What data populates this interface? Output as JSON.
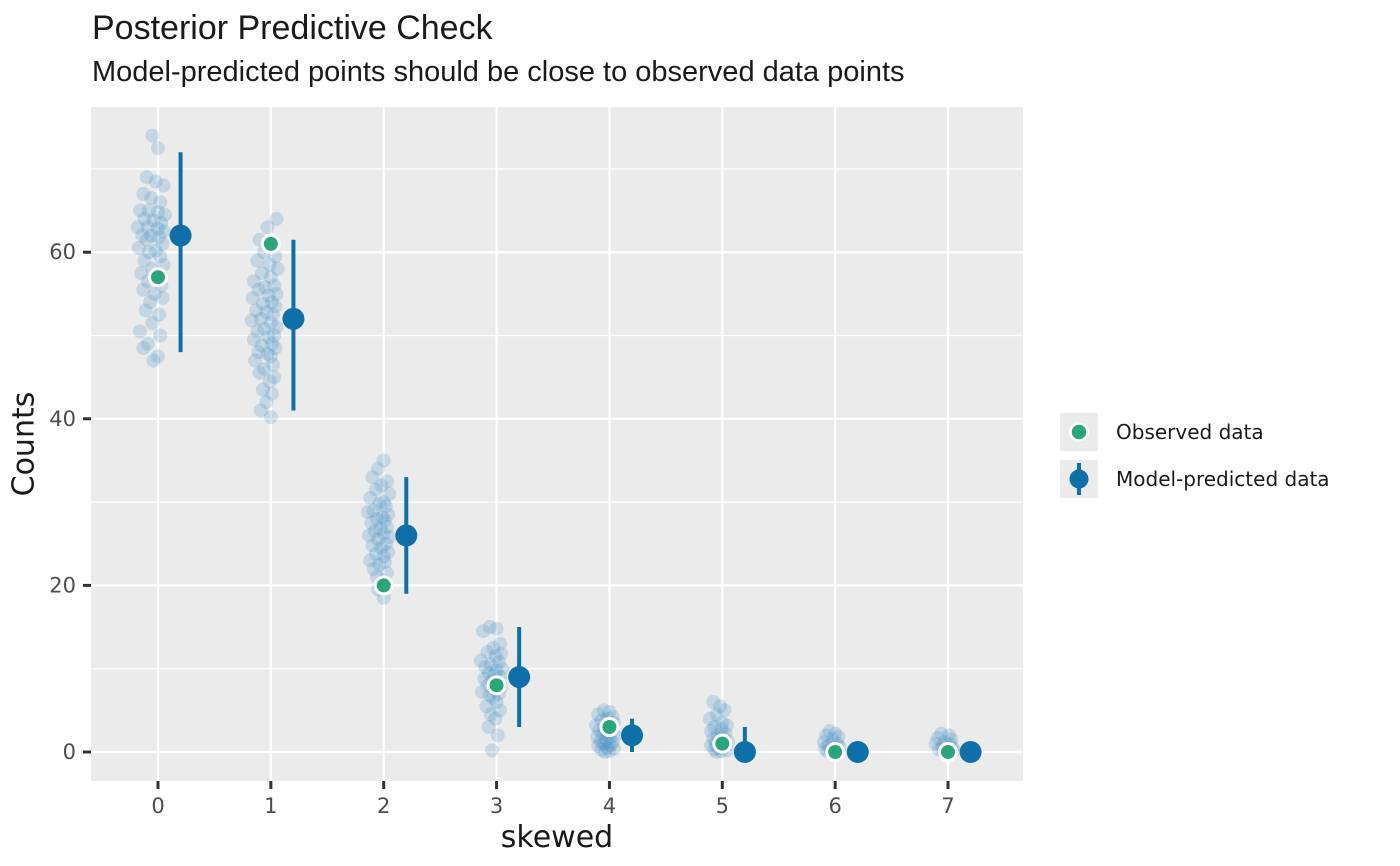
{
  "title": "Posterior Predictive Check",
  "subtitle": "Model-predicted points should be close to observed data points",
  "colors": {
    "observed": "#2CA57C",
    "predicted": "#0F6FA9",
    "draws_fill": "#3E8FC4",
    "draws_opacity": 0.22,
    "panel_bg": "#EBEBEB",
    "grid": "#FFFFFF",
    "axis_text": "#4D4D4D",
    "tick_mark": "#333333"
  },
  "legend": {
    "items": [
      {
        "label": "Observed data",
        "type": "point"
      },
      {
        "label": "Model-predicted data",
        "type": "pointrange"
      }
    ]
  },
  "chart_data": {
    "type": "scatter",
    "subtype": "ppc-pointrange-with-jittered-draws",
    "title": "Posterior Predictive Check",
    "subtitle": "Model-predicted points should be close to observed data points",
    "xlabel": "skewed",
    "ylabel": "Counts",
    "categories": [
      0,
      1,
      2,
      3,
      4,
      5,
      6,
      7
    ],
    "x_tick_labels": [
      "0",
      "1",
      "2",
      "3",
      "4",
      "5",
      "6",
      "7"
    ],
    "y_ticks": [
      0,
      20,
      40,
      60
    ],
    "y_minor_ticks": [
      10,
      30,
      50,
      70
    ],
    "xlim": [
      -0.59,
      7.66
    ],
    "ylim": [
      -3.5,
      77.4
    ],
    "grid": "major-white-on-gray, minor horizontal only",
    "legend_position": "right",
    "series": [
      {
        "name": "Observed data",
        "geom": "point",
        "values": [
          57,
          61,
          20,
          8,
          3,
          1,
          0,
          0
        ]
      },
      {
        "name": "Model-predicted data",
        "geom": "pointrange",
        "x_offset": 0.2,
        "mean": [
          62,
          52,
          26,
          9,
          2,
          0,
          0,
          0
        ],
        "lower": [
          48,
          41,
          19,
          3,
          0,
          0,
          0,
          0
        ],
        "upper": [
          72,
          61.5,
          33,
          15,
          4,
          3,
          1,
          1
        ]
      }
    ],
    "draws": [
      [
        [
          -0.05,
          74
        ],
        [
          0.0,
          72.5
        ],
        [
          -0.1,
          69
        ],
        [
          -0.02,
          68.5
        ],
        [
          0.05,
          68
        ],
        [
          -0.13,
          67
        ],
        [
          -0.06,
          66.5
        ],
        [
          0.02,
          66
        ],
        [
          -0.16,
          65
        ],
        [
          -0.08,
          65
        ],
        [
          0.0,
          64.8
        ],
        [
          0.06,
          64.5
        ],
        [
          -0.12,
          64
        ],
        [
          -0.04,
          63.8
        ],
        [
          0.03,
          63.5
        ],
        [
          -0.18,
          63
        ],
        [
          -0.09,
          63
        ],
        [
          0.0,
          62.8
        ],
        [
          0.05,
          62.5
        ],
        [
          -0.14,
          62
        ],
        [
          -0.06,
          62
        ],
        [
          0.01,
          61.8
        ],
        [
          -0.1,
          61.5
        ],
        [
          0.04,
          61
        ],
        [
          -0.17,
          60.5
        ],
        [
          -0.02,
          60.2
        ],
        [
          -0.08,
          60
        ],
        [
          0.02,
          59.5
        ],
        [
          -0.12,
          59
        ],
        [
          0.05,
          58.5
        ],
        [
          -0.05,
          58
        ],
        [
          -0.15,
          57.5
        ],
        [
          0.0,
          57
        ],
        [
          -0.09,
          56.5
        ],
        [
          0.03,
          56
        ],
        [
          -0.13,
          55.5
        ],
        [
          -0.03,
          55
        ],
        [
          0.04,
          54.5
        ],
        [
          -0.07,
          54
        ],
        [
          -0.11,
          53
        ],
        [
          0.01,
          52.5
        ],
        [
          -0.05,
          51.5
        ],
        [
          -0.16,
          50.5
        ],
        [
          0.02,
          50
        ],
        [
          -0.09,
          49
        ],
        [
          -0.13,
          48.5
        ],
        [
          0.0,
          47.5
        ],
        [
          -0.04,
          47
        ]
      ],
      [
        [
          0.05,
          64
        ],
        [
          -0.03,
          63
        ],
        [
          -0.1,
          61.5
        ],
        [
          0.02,
          61
        ],
        [
          -0.06,
          60
        ],
        [
          0.04,
          59.5
        ],
        [
          -0.12,
          59
        ],
        [
          -0.01,
          58.5
        ],
        [
          0.06,
          58
        ],
        [
          -0.08,
          57.5
        ],
        [
          0.0,
          57
        ],
        [
          -0.15,
          56.5
        ],
        [
          0.03,
          56
        ],
        [
          -0.05,
          55.8
        ],
        [
          -0.11,
          55.5
        ],
        [
          0.05,
          55
        ],
        [
          -0.02,
          54.8
        ],
        [
          -0.16,
          54.5
        ],
        [
          0.01,
          54
        ],
        [
          -0.07,
          53.8
        ],
        [
          0.04,
          53.5
        ],
        [
          -0.13,
          53
        ],
        [
          -0.04,
          52.8
        ],
        [
          0.02,
          52.5
        ],
        [
          -0.09,
          52
        ],
        [
          -0.17,
          51.8
        ],
        [
          0.0,
          51.5
        ],
        [
          0.05,
          51
        ],
        [
          -0.06,
          50.8
        ],
        [
          -0.12,
          50.5
        ],
        [
          0.03,
          50
        ],
        [
          -0.02,
          49.8
        ],
        [
          -0.15,
          49.5
        ],
        [
          0.01,
          49
        ],
        [
          -0.08,
          48.8
        ],
        [
          0.04,
          48.5
        ],
        [
          -0.11,
          48
        ],
        [
          -0.03,
          47.8
        ],
        [
          0.0,
          47.5
        ],
        [
          -0.14,
          47
        ],
        [
          0.02,
          46.5
        ],
        [
          -0.06,
          46
        ],
        [
          -0.1,
          45.5
        ],
        [
          0.03,
          45
        ],
        [
          -0.01,
          44.5
        ],
        [
          -0.07,
          43.5
        ],
        [
          0.01,
          43
        ],
        [
          -0.04,
          42
        ],
        [
          -0.09,
          41
        ],
        [
          0.0,
          40.2
        ]
      ],
      [
        [
          0.0,
          35
        ],
        [
          -0.05,
          34
        ],
        [
          -0.1,
          33
        ],
        [
          0.03,
          32.5
        ],
        [
          -0.02,
          32
        ],
        [
          -0.07,
          31.5
        ],
        [
          0.05,
          31
        ],
        [
          -0.12,
          30.5
        ],
        [
          0.0,
          30
        ],
        [
          -0.04,
          29.8
        ],
        [
          0.02,
          29.5
        ],
        [
          -0.09,
          29
        ],
        [
          -0.14,
          28.8
        ],
        [
          0.04,
          28.5
        ],
        [
          -0.01,
          28.2
        ],
        [
          -0.06,
          28
        ],
        [
          0.01,
          27.8
        ],
        [
          -0.11,
          27.5
        ],
        [
          0.03,
          27
        ],
        [
          -0.03,
          26.8
        ],
        [
          -0.08,
          26.5
        ],
        [
          0.0,
          26.2
        ],
        [
          -0.13,
          26
        ],
        [
          0.05,
          25.8
        ],
        [
          -0.05,
          25.5
        ],
        [
          0.02,
          25
        ],
        [
          -0.1,
          24.8
        ],
        [
          -0.02,
          24.5
        ],
        [
          0.04,
          24
        ],
        [
          -0.07,
          23.8
        ],
        [
          0.0,
          23.5
        ],
        [
          -0.12,
          23
        ],
        [
          0.01,
          22.8
        ],
        [
          -0.04,
          22.5
        ],
        [
          -0.09,
          22
        ],
        [
          0.03,
          21.5
        ],
        [
          -0.06,
          21
        ],
        [
          -0.01,
          20.5
        ],
        [
          -0.05,
          19.5
        ],
        [
          0.0,
          18.5
        ]
      ],
      [
        [
          -0.06,
          15
        ],
        [
          0.0,
          14.8
        ],
        [
          -0.12,
          14.5
        ],
        [
          0.03,
          13
        ],
        [
          -0.03,
          12.5
        ],
        [
          -0.08,
          12
        ],
        [
          0.04,
          11.8
        ],
        [
          -0.01,
          11.5
        ],
        [
          -0.14,
          11
        ],
        [
          0.02,
          10.8
        ],
        [
          -0.05,
          10.5
        ],
        [
          -0.1,
          10.2
        ],
        [
          0.05,
          10
        ],
        [
          0.0,
          9.8
        ],
        [
          -0.07,
          9.5
        ],
        [
          -0.02,
          9.2
        ],
        [
          0.03,
          9
        ],
        [
          -0.11,
          8.8
        ],
        [
          -0.04,
          8.5
        ],
        [
          0.01,
          8.2
        ],
        [
          -0.08,
          8
        ],
        [
          0.04,
          7.8
        ],
        [
          -0.01,
          7.5
        ],
        [
          -0.13,
          7.2
        ],
        [
          0.02,
          7
        ],
        [
          -0.06,
          6.8
        ],
        [
          -0.03,
          6.5
        ],
        [
          0.0,
          6
        ],
        [
          -0.09,
          5.5
        ],
        [
          0.03,
          5
        ],
        [
          -0.05,
          4.5
        ],
        [
          -0.01,
          4
        ],
        [
          -0.07,
          3
        ],
        [
          0.01,
          2
        ],
        [
          -0.04,
          0.2
        ]
      ],
      [
        [
          -0.05,
          5
        ],
        [
          0.0,
          4.8
        ],
        [
          -0.1,
          4.5
        ],
        [
          0.03,
          4.2
        ],
        [
          -0.02,
          4
        ],
        [
          -0.07,
          3.8
        ],
        [
          0.04,
          3.5
        ],
        [
          -0.12,
          3.2
        ],
        [
          0.01,
          3
        ],
        [
          -0.04,
          2.8
        ],
        [
          -0.09,
          2.6
        ],
        [
          0.02,
          2.5
        ],
        [
          -0.01,
          2.3
        ],
        [
          -0.06,
          2.2
        ],
        [
          0.05,
          2
        ],
        [
          -0.11,
          1.8
        ],
        [
          0.0,
          1.7
        ],
        [
          -0.03,
          1.5
        ],
        [
          -0.08,
          1.3
        ],
        [
          0.03,
          1.2
        ],
        [
          -0.05,
          1
        ],
        [
          0.01,
          0.8
        ],
        [
          -0.1,
          0.7
        ],
        [
          -0.02,
          0.5
        ],
        [
          0.04,
          0.4
        ],
        [
          -0.07,
          0.3
        ],
        [
          0.0,
          0.1
        ],
        [
          -0.04,
          0
        ]
      ],
      [
        [
          -0.08,
          6
        ],
        [
          -0.02,
          5.5
        ],
        [
          0.02,
          5
        ],
        [
          -0.05,
          4.5
        ],
        [
          -0.11,
          4
        ],
        [
          0.0,
          3.5
        ],
        [
          0.04,
          3.2
        ],
        [
          -0.07,
          3
        ],
        [
          -0.01,
          2.8
        ],
        [
          -0.1,
          2.5
        ],
        [
          0.03,
          2.2
        ],
        [
          -0.04,
          2
        ],
        [
          0.01,
          1.8
        ],
        [
          -0.08,
          1.6
        ],
        [
          -0.02,
          1.4
        ],
        [
          0.05,
          1.2
        ],
        [
          -0.06,
          1
        ],
        [
          0.0,
          0.9
        ],
        [
          -0.1,
          0.8
        ],
        [
          0.02,
          0.6
        ],
        [
          -0.03,
          0.5
        ],
        [
          -0.07,
          0.3
        ],
        [
          0.04,
          0.2
        ],
        [
          -0.01,
          0.1
        ],
        [
          -0.05,
          0
        ]
      ],
      [
        [
          -0.05,
          2.5
        ],
        [
          0.0,
          2.2
        ],
        [
          -0.08,
          2
        ],
        [
          0.03,
          1.8
        ],
        [
          -0.02,
          1.5
        ],
        [
          -0.1,
          1.2
        ],
        [
          0.02,
          1
        ],
        [
          -0.06,
          0.8
        ],
        [
          0.04,
          0.6
        ],
        [
          -0.01,
          0.5
        ],
        [
          -0.09,
          0.4
        ],
        [
          0.01,
          0.3
        ],
        [
          -0.04,
          0.2
        ],
        [
          -0.07,
          0.1
        ],
        [
          0.0,
          0
        ]
      ],
      [
        [
          -0.06,
          2.2
        ],
        [
          0.01,
          2
        ],
        [
          -0.09,
          1.7
        ],
        [
          0.03,
          1.5
        ],
        [
          -0.03,
          1.2
        ],
        [
          -0.11,
          1
        ],
        [
          0.02,
          0.9
        ],
        [
          -0.05,
          0.7
        ],
        [
          0.04,
          0.5
        ],
        [
          0.0,
          0.4
        ],
        [
          -0.08,
          0.3
        ],
        [
          -0.02,
          0.2
        ],
        [
          0.05,
          0.15
        ],
        [
          -0.04,
          0.1
        ],
        [
          -0.01,
          0
        ]
      ]
    ]
  }
}
